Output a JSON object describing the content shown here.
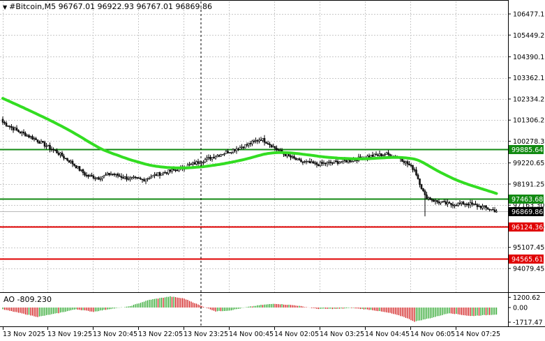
{
  "header": {
    "marker": "▼",
    "title": "#Bitcoin,M5  96767.01 96922.93 96767.01 96869.86"
  },
  "colors": {
    "bull": "#1a1a1a",
    "bear": "#1a1a1a",
    "ma": "#33dd22",
    "support_green": "#138a13",
    "red_line": "#e00000",
    "grid": "#c8c8c8",
    "ao_up": "#2aa52a",
    "ao_down": "#d01818"
  },
  "price_axis": {
    "ticks": [
      "106477.15",
      "105449.20",
      "104390.15",
      "103362.15",
      "102334.20",
      "101306.25",
      "100278.30",
      "99220.65",
      "98191.25",
      "97163.30",
      "96135.35",
      "95107.45",
      "94079.45"
    ],
    "tick_values": [
      106477.15,
      105449.2,
      104390.15,
      103362.15,
      102334.2,
      101306.25,
      100278.3,
      99220.65,
      98191.25,
      97163.3,
      96135.35,
      95107.45,
      94079.45
    ]
  },
  "levels": [
    {
      "label": "99885.64",
      "value": 99885.64,
      "color": "#138a13"
    },
    {
      "label": "97463.68",
      "value": 97463.68,
      "color": "#138a13"
    },
    {
      "label": "96124.36",
      "value": 96124.36,
      "color": "#e00000"
    },
    {
      "label": "94565.61",
      "value": 94565.61,
      "color": "#e00000"
    }
  ],
  "current_price": {
    "label": "96869.86",
    "value": 96869.86
  },
  "time_axis": [
    "13 Nov 2025",
    "13 Nov 19:25",
    "13 Nov 20:45",
    "13 Nov 22:05",
    "13 Nov 23:25",
    "14 Nov 00:45",
    "14 Nov 02:05",
    "14 Nov 03:25",
    "14 Nov 04:45",
    "14 Nov 06:05",
    "14 Nov 07:25"
  ],
  "indicator": {
    "title": "AO -809.230",
    "ticks": [
      "1200.62",
      "0.00",
      "-1717.47"
    ],
    "tick_values": [
      1200.62,
      0,
      -1717.47
    ]
  },
  "chart_data": {
    "type": "candlestick",
    "symbol": "#Bitcoin",
    "timeframe": "M5",
    "ma_start": 102400,
    "close_path": [
      [
        0,
        101200
      ],
      [
        8,
        100800
      ],
      [
        18,
        100400
      ],
      [
        30,
        99800
      ],
      [
        40,
        99200
      ],
      [
        48,
        98600
      ],
      [
        55,
        98500
      ],
      [
        62,
        98700
      ],
      [
        70,
        98500
      ],
      [
        80,
        98400
      ],
      [
        90,
        98700
      ],
      [
        100,
        98900
      ],
      [
        110,
        99200
      ],
      [
        120,
        99500
      ],
      [
        130,
        99800
      ],
      [
        140,
        100100
      ],
      [
        148,
        100400
      ],
      [
        152,
        100200
      ],
      [
        160,
        99700
      ],
      [
        170,
        99300
      ],
      [
        180,
        99150
      ],
      [
        190,
        99250
      ],
      [
        200,
        99350
      ],
      [
        210,
        99550
      ],
      [
        220,
        99650
      ],
      [
        228,
        99450
      ],
      [
        236,
        98900
      ],
      [
        242,
        97600
      ],
      [
        248,
        97350
      ],
      [
        256,
        97200
      ],
      [
        266,
        97250
      ],
      [
        276,
        97050
      ],
      [
        283,
        96870
      ]
    ],
    "ao": [
      [
        0,
        -220
      ],
      [
        10,
        -650
      ],
      [
        20,
        -1100
      ],
      [
        32,
        -650
      ],
      [
        42,
        -200
      ],
      [
        52,
        -500
      ],
      [
        62,
        -150
      ],
      [
        72,
        100
      ],
      [
        84,
        900
      ],
      [
        96,
        1300
      ],
      [
        104,
        1050
      ],
      [
        112,
        350
      ],
      [
        122,
        -450
      ],
      [
        130,
        -350
      ],
      [
        140,
        50
      ],
      [
        148,
        300
      ],
      [
        156,
        450
      ],
      [
        168,
        250
      ],
      [
        180,
        -150
      ],
      [
        192,
        -150
      ],
      [
        200,
        -50
      ],
      [
        212,
        -300
      ],
      [
        222,
        -650
      ],
      [
        230,
        -1100
      ],
      [
        236,
        -1650
      ],
      [
        246,
        -1200
      ],
      [
        256,
        -650
      ],
      [
        268,
        -1000
      ],
      [
        283,
        -809.23
      ]
    ]
  }
}
